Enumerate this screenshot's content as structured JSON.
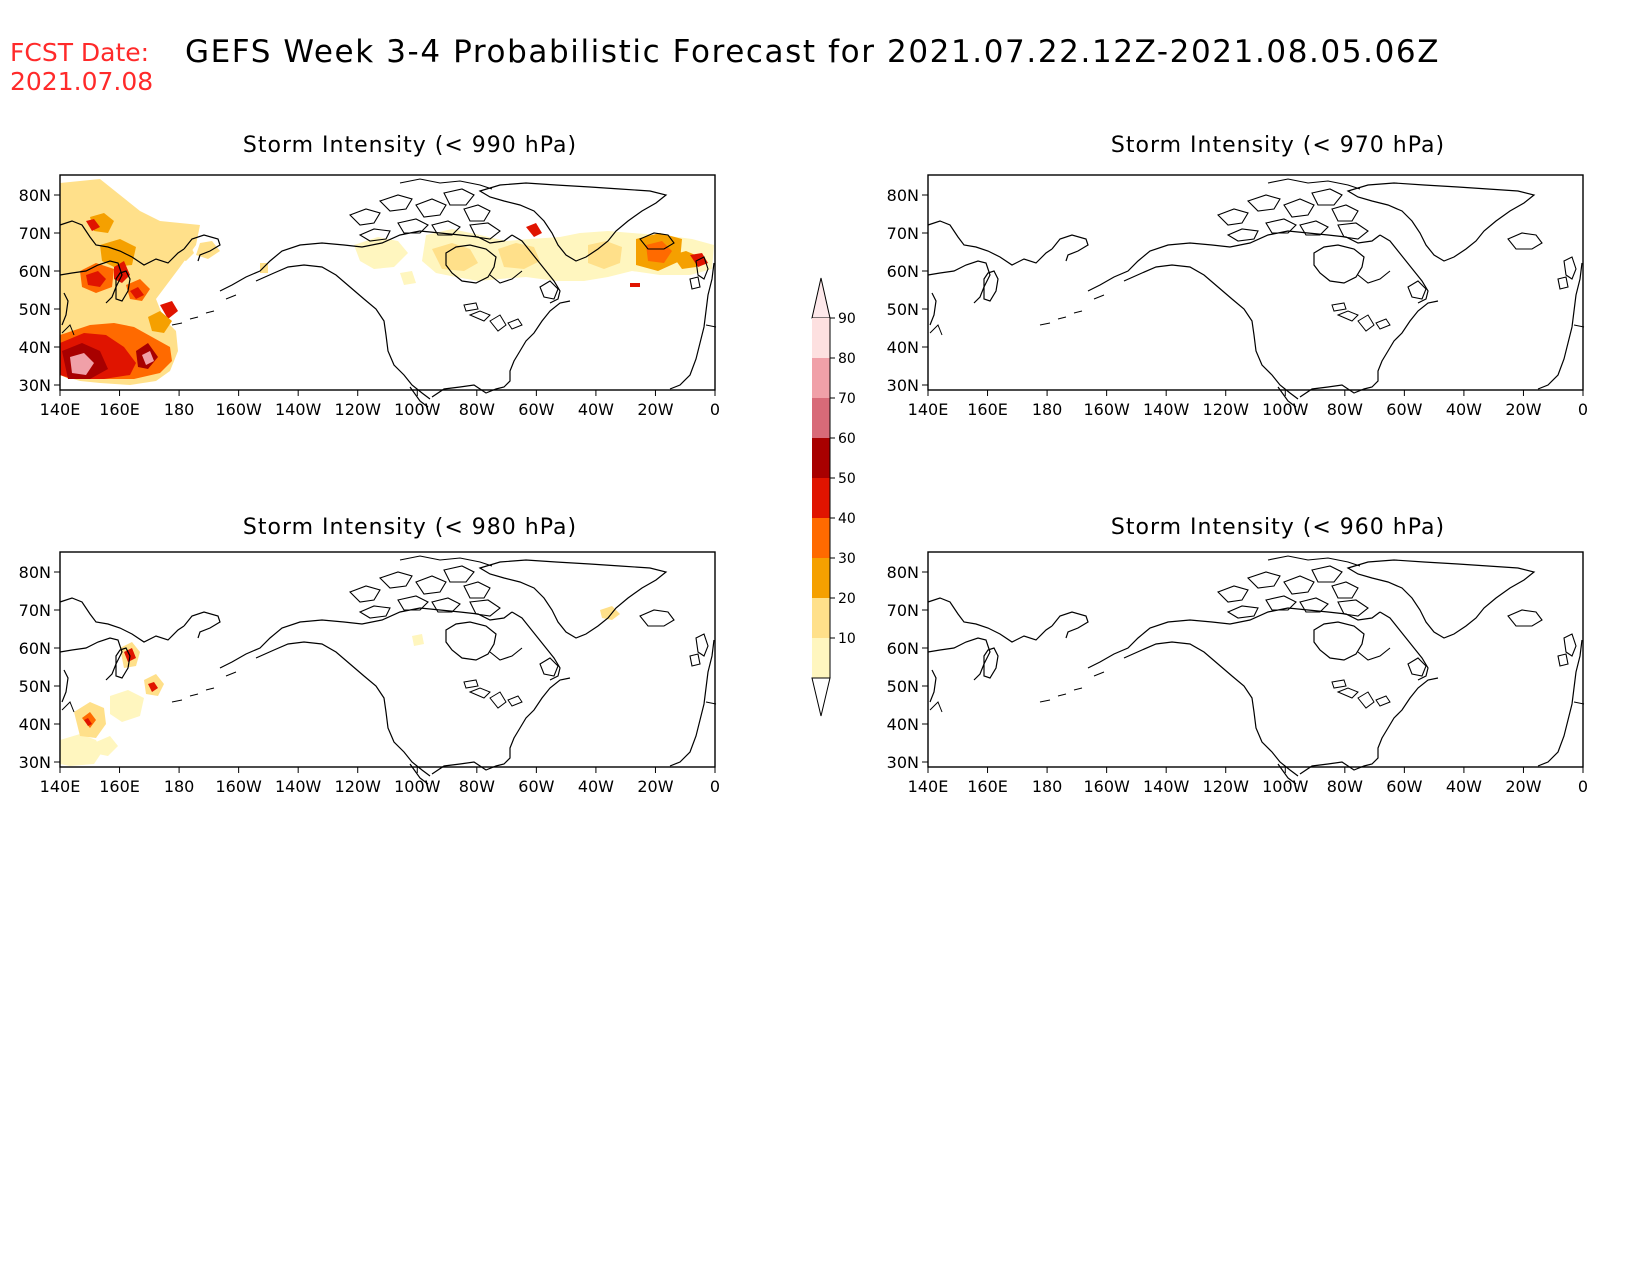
{
  "header": {
    "fcst_label": "FCST Date:",
    "fcst_date": "2021.07.08",
    "title": "GEFS Week 3-4 Probabilistic Forecast for 2021.07.22.12Z-2021.08.05.06Z"
  },
  "axes": {
    "lat_labels": [
      "80N",
      "70N",
      "60N",
      "50N",
      "40N",
      "30N"
    ],
    "lon_labels": [
      "140E",
      "160E",
      "180",
      "160W",
      "140W",
      "120W",
      "100W",
      "80W",
      "60W",
      "40W",
      "20W",
      "0"
    ]
  },
  "panels": [
    {
      "id": "p990",
      "title": "Storm Intensity (< 990 hPa)"
    },
    {
      "id": "p970",
      "title": "Storm Intensity (< 970 hPa)"
    },
    {
      "id": "p980",
      "title": "Storm Intensity (< 980 hPa)"
    },
    {
      "id": "p960",
      "title": "Storm Intensity (< 960 hPa)"
    }
  ],
  "colorbar": {
    "labels": [
      "90",
      "80",
      "70",
      "60",
      "50",
      "40",
      "30",
      "20",
      "10"
    ],
    "colors": [
      "#fde0e0",
      "#f0a0a8",
      "#d86a78",
      "#a80000",
      "#e01400",
      "#ff6a00",
      "#f5a000",
      "#ffe08a",
      "#fff6bf"
    ]
  }
}
